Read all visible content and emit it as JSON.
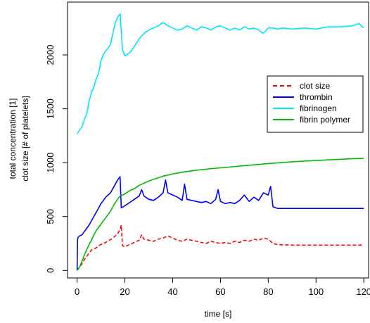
{
  "chart_data": {
    "type": "line",
    "xlabel": "time [s]",
    "ylabel_line1": "total concentration [1]",
    "ylabel_line2": "clot size [# of platelets]",
    "xlim": [
      -4,
      122
    ],
    "ylim": [
      -70,
      2490
    ],
    "x_ticks": [
      0,
      20,
      40,
      60,
      80,
      100,
      120
    ],
    "y_ticks": [
      0,
      500,
      1000,
      1500,
      2000
    ],
    "legend_position": "right",
    "series": [
      {
        "name": "clot size",
        "color": "#ff0000",
        "dash": "dashed",
        "points": [
          [
            0,
            0
          ],
          [
            1,
            30
          ],
          [
            2,
            60
          ],
          [
            3,
            100
          ],
          [
            4,
            130
          ],
          [
            5,
            160
          ],
          [
            6,
            190
          ],
          [
            7,
            200
          ],
          [
            8,
            210
          ],
          [
            9,
            230
          ],
          [
            10,
            240
          ],
          [
            11,
            250
          ],
          [
            12,
            260
          ],
          [
            13,
            275
          ],
          [
            14,
            285
          ],
          [
            15,
            300
          ],
          [
            16,
            320
          ],
          [
            17,
            340
          ],
          [
            18,
            380
          ],
          [
            18.5,
            420
          ],
          [
            19,
            230
          ],
          [
            20,
            220
          ],
          [
            22,
            240
          ],
          [
            24,
            260
          ],
          [
            26,
            280
          ],
          [
            27,
            330
          ],
          [
            28,
            290
          ],
          [
            30,
            280
          ],
          [
            32,
            270
          ],
          [
            34,
            290
          ],
          [
            36,
            300
          ],
          [
            38,
            320
          ],
          [
            40,
            300
          ],
          [
            42,
            280
          ],
          [
            44,
            270
          ],
          [
            46,
            290
          ],
          [
            48,
            280
          ],
          [
            50,
            270
          ],
          [
            52,
            260
          ],
          [
            54,
            250
          ],
          [
            56,
            270
          ],
          [
            58,
            260
          ],
          [
            60,
            250
          ],
          [
            62,
            260
          ],
          [
            64,
            250
          ],
          [
            66,
            270
          ],
          [
            68,
            260
          ],
          [
            70,
            280
          ],
          [
            72,
            270
          ],
          [
            74,
            290
          ],
          [
            76,
            280
          ],
          [
            78,
            300
          ],
          [
            80,
            290
          ],
          [
            82,
            250
          ],
          [
            84,
            240
          ],
          [
            90,
            235
          ],
          [
            100,
            235
          ],
          [
            110,
            235
          ],
          [
            120,
            235
          ]
        ]
      },
      {
        "name": "thrombin",
        "color": "#0000ff",
        "dash": "solid",
        "points": [
          [
            0,
            0
          ],
          [
            0.2,
            290
          ],
          [
            0.5,
            310
          ],
          [
            1,
            320
          ],
          [
            2,
            330
          ],
          [
            3,
            360
          ],
          [
            4,
            390
          ],
          [
            5,
            420
          ],
          [
            6,
            460
          ],
          [
            7,
            500
          ],
          [
            8,
            540
          ],
          [
            9,
            580
          ],
          [
            10,
            620
          ],
          [
            11,
            650
          ],
          [
            12,
            680
          ],
          [
            13,
            700
          ],
          [
            14,
            720
          ],
          [
            15,
            760
          ],
          [
            16,
            800
          ],
          [
            17,
            840
          ],
          [
            18,
            870
          ],
          [
            18.5,
            580
          ],
          [
            20,
            600
          ],
          [
            22,
            630
          ],
          [
            24,
            660
          ],
          [
            26,
            690
          ],
          [
            27,
            750
          ],
          [
            28,
            690
          ],
          [
            30,
            660
          ],
          [
            32,
            650
          ],
          [
            34,
            680
          ],
          [
            36,
            720
          ],
          [
            37,
            840
          ],
          [
            38,
            720
          ],
          [
            40,
            700
          ],
          [
            42,
            680
          ],
          [
            44,
            650
          ],
          [
            45,
            800
          ],
          [
            46,
            660
          ],
          [
            48,
            650
          ],
          [
            50,
            640
          ],
          [
            52,
            630
          ],
          [
            54,
            640
          ],
          [
            56,
            620
          ],
          [
            58,
            660
          ],
          [
            59,
            750
          ],
          [
            60,
            640
          ],
          [
            62,
            620
          ],
          [
            64,
            630
          ],
          [
            66,
            620
          ],
          [
            68,
            650
          ],
          [
            70,
            700
          ],
          [
            72,
            640
          ],
          [
            74,
            680
          ],
          [
            76,
            650
          ],
          [
            78,
            720
          ],
          [
            80,
            700
          ],
          [
            81,
            780
          ],
          [
            82,
            590
          ],
          [
            84,
            575
          ],
          [
            90,
            575
          ],
          [
            100,
            575
          ],
          [
            110,
            575
          ],
          [
            120,
            575
          ]
        ]
      },
      {
        "name": "fibrinogen",
        "color": "#00e5ff",
        "dash": "solid",
        "points": [
          [
            0,
            1270
          ],
          [
            1,
            1300
          ],
          [
            2,
            1330
          ],
          [
            3,
            1400
          ],
          [
            4,
            1450
          ],
          [
            5,
            1570
          ],
          [
            6,
            1650
          ],
          [
            7,
            1700
          ],
          [
            8,
            1780
          ],
          [
            9,
            1830
          ],
          [
            10,
            1950
          ],
          [
            11,
            2000
          ],
          [
            12,
            2040
          ],
          [
            13,
            2060
          ],
          [
            14,
            2100
          ],
          [
            15,
            2200
          ],
          [
            16,
            2300
          ],
          [
            17,
            2350
          ],
          [
            18,
            2380
          ],
          [
            19,
            2050
          ],
          [
            20,
            1990
          ],
          [
            22,
            2020
          ],
          [
            24,
            2080
          ],
          [
            26,
            2150
          ],
          [
            28,
            2200
          ],
          [
            30,
            2230
          ],
          [
            32,
            2250
          ],
          [
            34,
            2270
          ],
          [
            36,
            2300
          ],
          [
            38,
            2270
          ],
          [
            40,
            2250
          ],
          [
            42,
            2230
          ],
          [
            44,
            2240
          ],
          [
            46,
            2270
          ],
          [
            48,
            2250
          ],
          [
            50,
            2230
          ],
          [
            52,
            2260
          ],
          [
            54,
            2250
          ],
          [
            56,
            2230
          ],
          [
            58,
            2260
          ],
          [
            60,
            2270
          ],
          [
            62,
            2250
          ],
          [
            64,
            2230
          ],
          [
            66,
            2250
          ],
          [
            68,
            2230
          ],
          [
            70,
            2260
          ],
          [
            72,
            2240
          ],
          [
            74,
            2250
          ],
          [
            76,
            2230
          ],
          [
            78,
            2200
          ],
          [
            80,
            2250
          ],
          [
            82,
            2250
          ],
          [
            84,
            2240
          ],
          [
            86,
            2250
          ],
          [
            90,
            2240
          ],
          [
            95,
            2250
          ],
          [
            100,
            2240
          ],
          [
            105,
            2260
          ],
          [
            110,
            2260
          ],
          [
            115,
            2270
          ],
          [
            118,
            2290
          ],
          [
            120,
            2250
          ]
        ]
      },
      {
        "name": "fibrin polymer",
        "color": "#00bb00",
        "dash": "solid",
        "points": [
          [
            0,
            0
          ],
          [
            1,
            30
          ],
          [
            2,
            80
          ],
          [
            3,
            140
          ],
          [
            4,
            190
          ],
          [
            5,
            240
          ],
          [
            6,
            280
          ],
          [
            7,
            330
          ],
          [
            8,
            370
          ],
          [
            9,
            400
          ],
          [
            10,
            430
          ],
          [
            11,
            460
          ],
          [
            12,
            490
          ],
          [
            13,
            520
          ],
          [
            14,
            550
          ],
          [
            15,
            590
          ],
          [
            16,
            630
          ],
          [
            17,
            660
          ],
          [
            18,
            690
          ],
          [
            20,
            710
          ],
          [
            22,
            740
          ],
          [
            24,
            760
          ],
          [
            26,
            790
          ],
          [
            28,
            810
          ],
          [
            30,
            830
          ],
          [
            32,
            845
          ],
          [
            34,
            860
          ],
          [
            36,
            875
          ],
          [
            38,
            885
          ],
          [
            40,
            895
          ],
          [
            45,
            915
          ],
          [
            50,
            930
          ],
          [
            55,
            942
          ],
          [
            60,
            952
          ],
          [
            65,
            962
          ],
          [
            70,
            972
          ],
          [
            75,
            982
          ],
          [
            80,
            992
          ],
          [
            85,
            1000
          ],
          [
            90,
            1008
          ],
          [
            95,
            1015
          ],
          [
            100,
            1020
          ],
          [
            105,
            1026
          ],
          [
            110,
            1031
          ],
          [
            115,
            1036
          ],
          [
            120,
            1040
          ]
        ]
      }
    ]
  }
}
